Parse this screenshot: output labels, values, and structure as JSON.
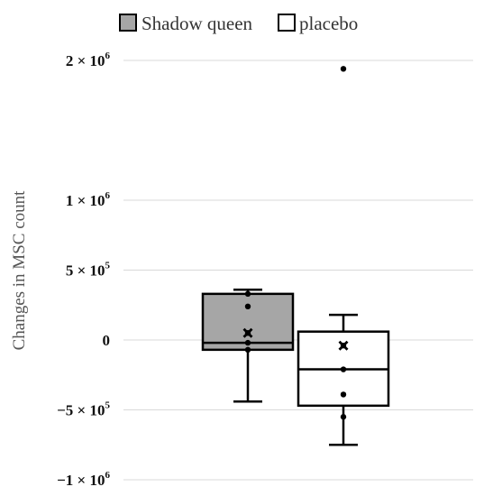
{
  "chart_data": {
    "type": "box",
    "ylabel": "Changes in MSC count",
    "ylim": [
      -1000000,
      2000000
    ],
    "grid": true,
    "legend_position": "top",
    "y_ticks": [
      {
        "value": 2000000,
        "coef": "2",
        "exp": "6"
      },
      {
        "value": 1000000,
        "coef": "1",
        "exp": "6"
      },
      {
        "value": 500000,
        "coef": "5",
        "exp": "5"
      },
      {
        "value": 0,
        "coef": "0",
        "exp": ""
      },
      {
        "value": -500000,
        "coef": "−5",
        "exp": "5"
      },
      {
        "value": -1000000,
        "coef": "−1",
        "exp": "6"
      }
    ],
    "times_sign": " × 10",
    "series": [
      {
        "name": "Shadow queen",
        "color": "#a6a6a6",
        "whisker_low": -440000,
        "q1": -70000,
        "median": -20000,
        "q3": 330000,
        "whisker_high": 360000,
        "mean": 50000,
        "points": [
          330000,
          240000,
          50000,
          -20000,
          -70000
        ]
      },
      {
        "name": "placebo",
        "color": "#ffffff",
        "whisker_low": -750000,
        "q1": -470000,
        "median": -210000,
        "q3": 60000,
        "whisker_high": 180000,
        "mean": -40000,
        "points": [
          -40000,
          -210000,
          -390000,
          -550000
        ],
        "outliers": [
          1940000
        ]
      }
    ]
  }
}
